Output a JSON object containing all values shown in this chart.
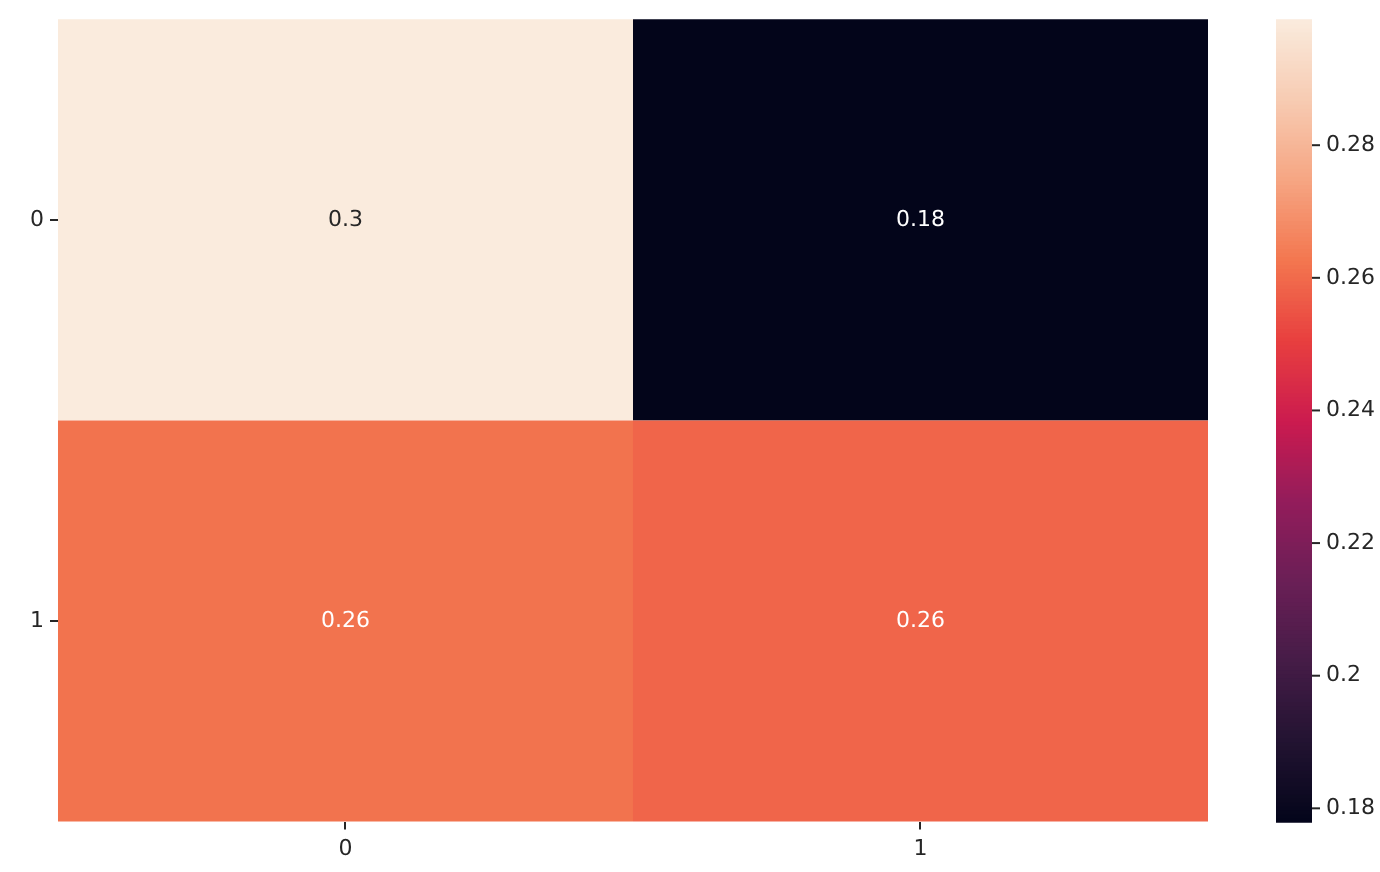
{
  "chart_data": {
    "type": "heatmap",
    "categories": [
      "0",
      "1"
    ],
    "y_categories": [
      "0",
      "1"
    ],
    "cells": [
      [
        0.299,
        0.178
      ],
      [
        0.262,
        0.259
      ]
    ],
    "cell_labels": [
      [
        "0.3",
        "0.18"
      ],
      [
        "0.26",
        "0.26"
      ]
    ],
    "clim": [
      0.178,
      0.299
    ],
    "cticks": [
      0.18,
      0.2,
      0.22,
      0.24,
      0.26,
      0.28
    ]
  }
}
